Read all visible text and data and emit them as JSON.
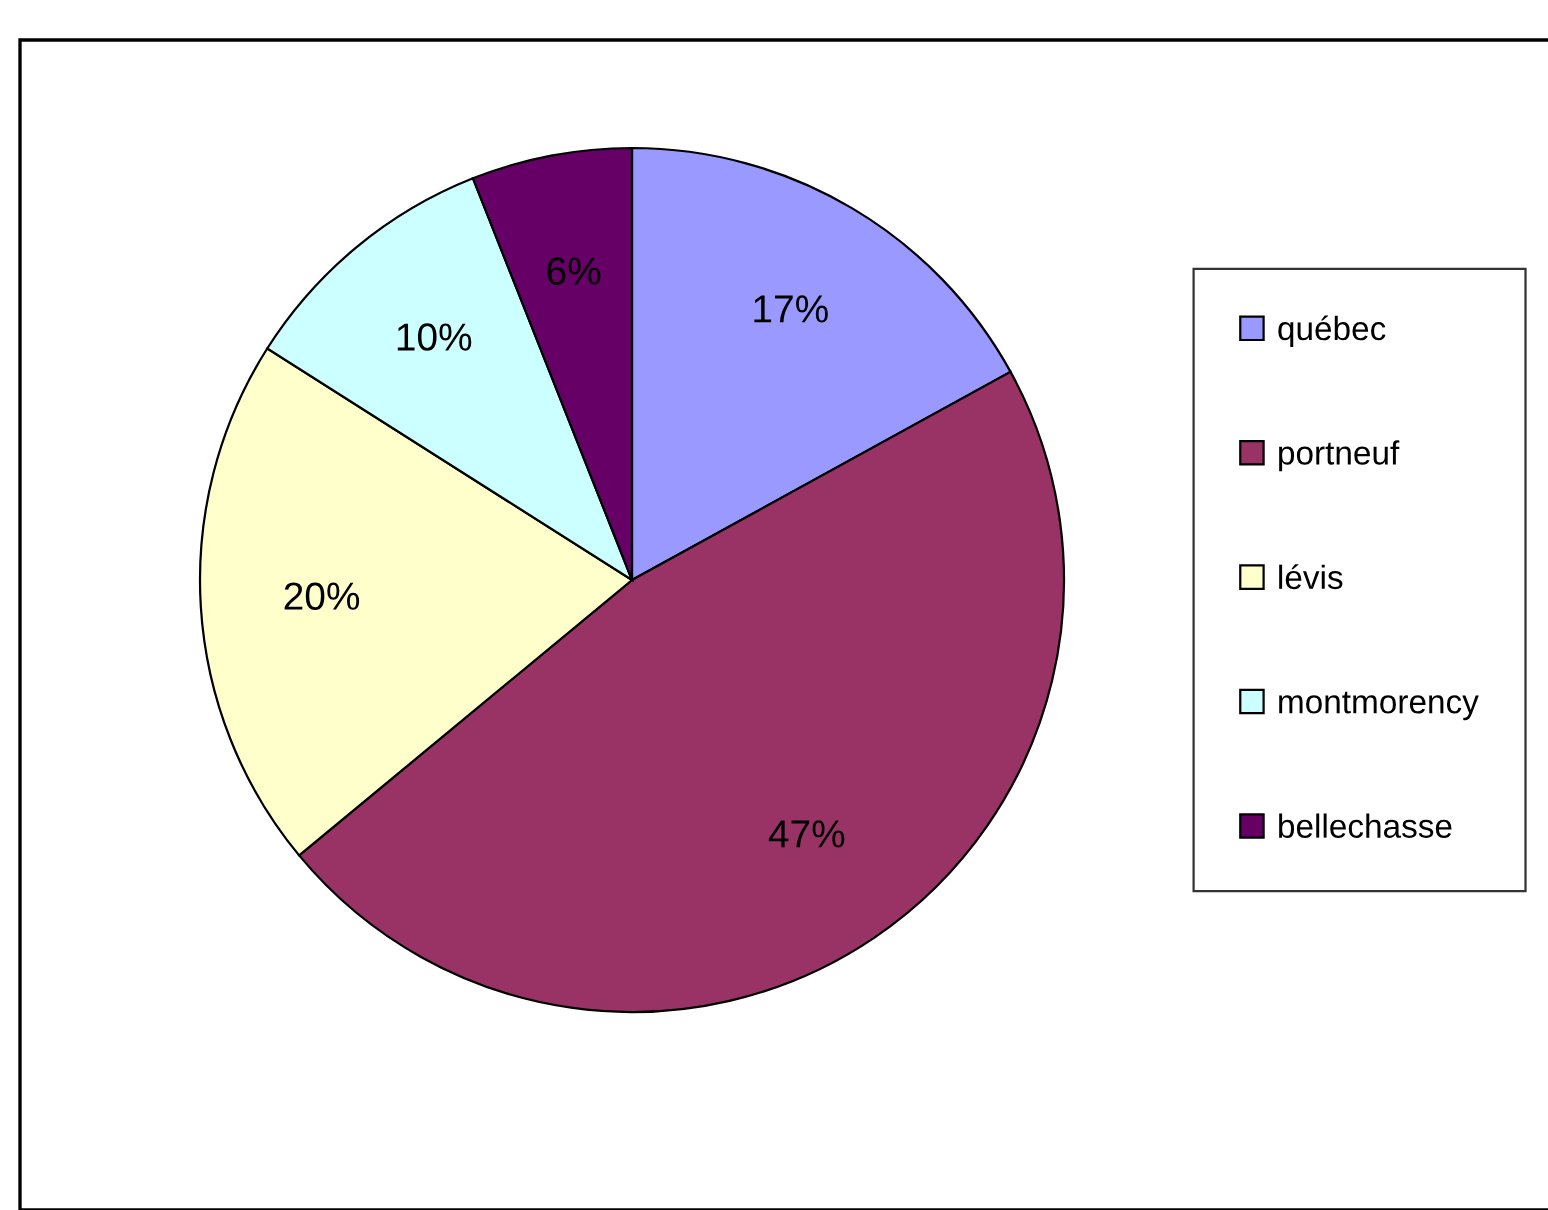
{
  "chart_data": {
    "type": "pie",
    "categories": [
      "québec",
      "portneuf",
      "lévis",
      "montmorency",
      "bellechasse"
    ],
    "values": [
      17,
      47,
      20,
      10,
      6
    ],
    "colors": [
      "#9999ff",
      "#993366",
      "#ffffcc",
      "#ccffff",
      "#660066"
    ],
    "value_labels": [
      "17%",
      "47%",
      "20%",
      "10%",
      "6%"
    ],
    "legend": "right"
  }
}
